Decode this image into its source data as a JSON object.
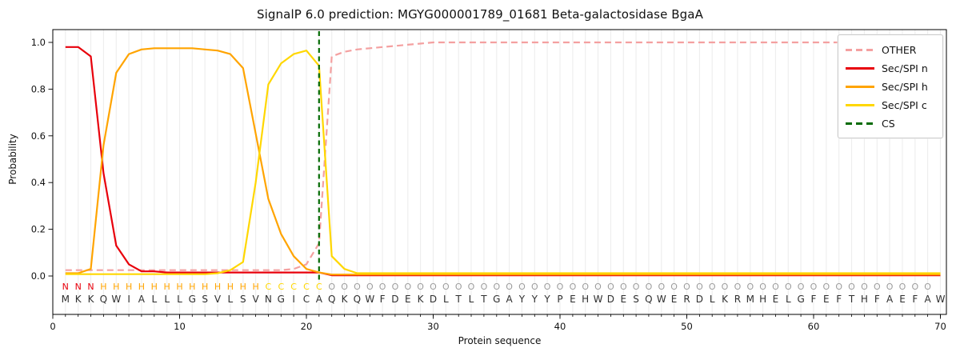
{
  "title": "SignalP 6.0 prediction: MGYG000001789_01681 Beta-galactosidase BgaA",
  "axes": {
    "xlabel": "Protein sequence",
    "ylabel": "Probability",
    "x_ticks": [
      0,
      10,
      20,
      30,
      40,
      50,
      60,
      70
    ],
    "y_ticks": [
      "0.0",
      "0.2",
      "0.4",
      "0.6",
      "0.8",
      "1.0"
    ],
    "y_tick_values": [
      0.0,
      0.2,
      0.4,
      0.6,
      0.8,
      1.0
    ],
    "xlim": [
      0,
      70.5
    ],
    "grid": "vertical line at every residue, light gray"
  },
  "chart_data": {
    "type": "line",
    "title": "SignalP 6.0 prediction: MGYG000001789_01681 Beta-galactosidase BgaA",
    "xlabel": "Protein sequence",
    "ylabel": "Probability",
    "ylim": [
      0,
      1.0
    ],
    "legend_position": "upper right",
    "x": [
      1,
      2,
      3,
      4,
      5,
      6,
      7,
      8,
      9,
      10,
      11,
      12,
      13,
      14,
      15,
      16,
      17,
      18,
      19,
      20,
      21,
      22,
      23,
      24,
      25,
      26,
      27,
      28,
      29,
      30,
      31,
      32,
      33,
      34,
      35,
      36,
      37,
      38,
      39,
      40,
      41,
      42,
      43,
      44,
      45,
      46,
      47,
      48,
      49,
      50,
      51,
      52,
      53,
      54,
      55,
      56,
      57,
      58,
      59,
      60,
      61,
      62,
      63,
      64,
      65,
      66,
      67,
      68,
      69,
      70
    ],
    "series": [
      {
        "name": "OTHER",
        "color": "#f4a0a0",
        "style": "dashed",
        "values": [
          0.025,
          0.025,
          0.025,
          0.025,
          0.025,
          0.025,
          0.025,
          0.025,
          0.025,
          0.025,
          0.025,
          0.025,
          0.025,
          0.025,
          0.025,
          0.025,
          0.025,
          0.025,
          0.03,
          0.05,
          0.14,
          0.94,
          0.96,
          0.97,
          0.975,
          0.98,
          0.985,
          0.99,
          0.995,
          1.0,
          1.0,
          1.0,
          1.0,
          1.0,
          1.0,
          1.0,
          1.0,
          1.0,
          1.0,
          1.0,
          1.0,
          1.0,
          1.0,
          1.0,
          1.0,
          1.0,
          1.0,
          1.0,
          1.0,
          1.0,
          1.0,
          1.0,
          1.0,
          1.0,
          1.0,
          1.0,
          1.0,
          1.0,
          1.0,
          1.0,
          1.0,
          1.0,
          1.0,
          1.0,
          1.0,
          1.0,
          1.0,
          1.0,
          1.0,
          1.0
        ]
      },
      {
        "name": "Sec/SPI n",
        "color": "#e8000b",
        "style": "solid",
        "values": [
          0.98,
          0.98,
          0.94,
          0.44,
          0.13,
          0.05,
          0.02,
          0.02,
          0.015,
          0.015,
          0.015,
          0.015,
          0.015,
          0.015,
          0.015,
          0.015,
          0.015,
          0.015,
          0.015,
          0.015,
          0.015,
          0.003,
          0.003,
          0.003,
          0.003,
          0.003,
          0.003,
          0.003,
          0.003,
          0.003,
          0.003,
          0.003,
          0.003,
          0.003,
          0.003,
          0.003,
          0.003,
          0.003,
          0.003,
          0.003,
          0.003,
          0.003,
          0.003,
          0.003,
          0.003,
          0.003,
          0.003,
          0.003,
          0.003,
          0.003,
          0.003,
          0.003,
          0.003,
          0.003,
          0.003,
          0.003,
          0.003,
          0.003,
          0.003,
          0.003,
          0.003,
          0.003,
          0.003,
          0.003,
          0.003,
          0.003,
          0.003,
          0.003,
          0.003,
          0.003
        ]
      },
      {
        "name": "Sec/SPI h",
        "color": "#ffa400",
        "style": "solid",
        "values": [
          0.012,
          0.012,
          0.03,
          0.56,
          0.87,
          0.95,
          0.97,
          0.975,
          0.975,
          0.975,
          0.975,
          0.97,
          0.965,
          0.95,
          0.89,
          0.61,
          0.33,
          0.18,
          0.085,
          0.03,
          0.015,
          0.006,
          0.006,
          0.006,
          0.006,
          0.006,
          0.006,
          0.006,
          0.006,
          0.006,
          0.006,
          0.006,
          0.006,
          0.006,
          0.006,
          0.006,
          0.006,
          0.006,
          0.006,
          0.006,
          0.006,
          0.006,
          0.006,
          0.006,
          0.006,
          0.006,
          0.006,
          0.006,
          0.006,
          0.006,
          0.006,
          0.006,
          0.006,
          0.006,
          0.006,
          0.006,
          0.006,
          0.006,
          0.006,
          0.006,
          0.006,
          0.006,
          0.006,
          0.006,
          0.006,
          0.006,
          0.006,
          0.006,
          0.006,
          0.006
        ]
      },
      {
        "name": "Sec/SPI c",
        "color": "#ffd700",
        "style": "solid",
        "values": [
          0.008,
          0.008,
          0.008,
          0.008,
          0.008,
          0.008,
          0.008,
          0.008,
          0.008,
          0.008,
          0.008,
          0.008,
          0.012,
          0.025,
          0.06,
          0.4,
          0.82,
          0.91,
          0.95,
          0.965,
          0.9,
          0.085,
          0.03,
          0.012,
          0.012,
          0.012,
          0.012,
          0.012,
          0.012,
          0.012,
          0.012,
          0.012,
          0.012,
          0.012,
          0.012,
          0.012,
          0.012,
          0.012,
          0.012,
          0.012,
          0.012,
          0.012,
          0.012,
          0.012,
          0.012,
          0.012,
          0.012,
          0.012,
          0.012,
          0.012,
          0.012,
          0.012,
          0.012,
          0.012,
          0.012,
          0.012,
          0.012,
          0.012,
          0.012,
          0.012,
          0.012,
          0.012,
          0.012,
          0.012,
          0.012,
          0.012,
          0.012,
          0.012,
          0.012,
          0.012
        ]
      }
    ],
    "cs_line": {
      "name": "CS",
      "color": "#046b04",
      "style": "dashed",
      "position": 21
    },
    "sequence": "MKKQWIALLLGSVLSVNGICAQKQWFDEKDLTLTGAYYYPEHWDESQWERDLKRMHELGFEFTHFAEFAW",
    "region_labels": "NNNHHHHHHHHHHHHHCCCCCOOOOOOOOOOOOOOOOOOOOOOOOOOOOOOOOOOOOOOOOOOOOOOOO",
    "region_colors": {
      "N": "#e8000b",
      "H": "#ffa400",
      "C": "#ffd700",
      "O": "#9c9c9c"
    },
    "sequence_color": "#2f2f2f",
    "legend": [
      "OTHER",
      "Sec/SPI n",
      "Sec/SPI h",
      "Sec/SPI c",
      "CS"
    ]
  }
}
